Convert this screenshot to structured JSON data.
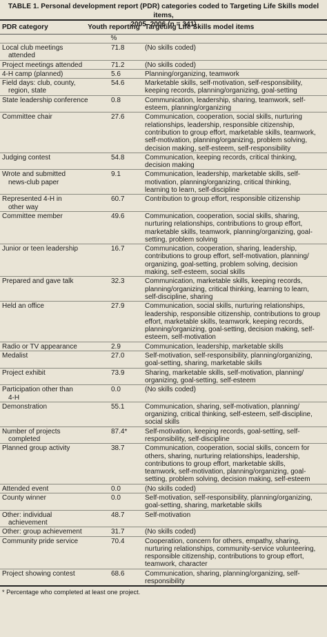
{
  "table": {
    "caption_line1": "TABLE 1. Personal development report (PDR) categories coded to Targeting Life Skills model items,",
    "caption_line2": "2005–2006 (n = 341)",
    "headers": [
      "PDR category",
      "Youth reporting",
      "Targeting Life Skills model items"
    ],
    "unit": "%",
    "rows": [
      {
        "cat": [
          "Local club meetings",
          "attended"
        ],
        "pct": "71.8",
        "items": [
          "(No skills coded)"
        ]
      },
      {
        "cat": [
          "Project meetings attended"
        ],
        "pct": "71.2",
        "items": [
          "(No skills coded)"
        ]
      },
      {
        "cat": [
          "4-H camp (planned)"
        ],
        "pct": "5.6",
        "items": [
          "Planning/organizing, teamwork"
        ]
      },
      {
        "cat": [
          "Field days: club, county,",
          "region, state"
        ],
        "pct": "54.6",
        "items": [
          "Marketable skills, self-motivation, self-responsibility,",
          "keeping records, planning/organizing, goal-setting"
        ]
      },
      {
        "cat": [
          "State leadership conference"
        ],
        "pct": "0.8",
        "items": [
          "Communication, leadership, sharing, teamwork, self-",
          "esteem, planning/organizing"
        ]
      },
      {
        "cat": [
          "Committee chair"
        ],
        "pct": "27.6",
        "items": [
          "Communication, cooperation, social skills, nurturing",
          "relationships, leadership, responsible citizenship,",
          "contribution to group effort, marketable skills, teamwork,",
          "self-motivation, planning/organizing, problem solving,",
          "decision making, self-esteem, self-responsibility"
        ]
      },
      {
        "cat": [
          "Judging contest"
        ],
        "pct": "54.8",
        "items": [
          "Communication, keeping records, critical thinking,",
          "decision making"
        ]
      },
      {
        "cat": [
          "Wrote and submitted",
          "news-club paper"
        ],
        "pct": "9.1",
        "items": [
          "Communication, leadership, marketable skills, self-",
          "motivation, planning/organizing, critical thinking,",
          "learning to learn, self-discipline"
        ]
      },
      {
        "cat": [
          "Represented 4-H in",
          "other way"
        ],
        "pct": "60.7",
        "items": [
          "Contribution to group effort, responsible citizenship"
        ]
      },
      {
        "cat": [
          "Committee member"
        ],
        "pct": "49.6",
        "items": [
          "Communication, cooperation, social skills, sharing,",
          "nurturing relationships, contributions to group effort,",
          "marketable skills, teamwork, planning/organizing, goal-",
          "setting, problem solving"
        ]
      },
      {
        "cat": [
          "Junior or teen leadership"
        ],
        "pct": "16.7",
        "items": [
          "Communication, cooperation, sharing, leadership,",
          "contributions to group effort, self-motivation, planning/",
          "organizing, goal-setting, problem solving, decision",
          "making, self-esteem, social skills"
        ]
      },
      {
        "cat": [
          "Prepared and gave talk"
        ],
        "pct": "32.3",
        "items": [
          "Communication, marketable skills, keeping records,",
          "planning/organizing, critical thinking, learning to learn,",
          "self-discipline, sharing"
        ]
      },
      {
        "cat": [
          "Held an office"
        ],
        "pct": "27.9",
        "items": [
          "Communication, social skills, nurturing relationships,",
          "leadership, responsible citizenship, contributions to group",
          "effort, marketable skills, teamwork, keeping records,",
          "planning/organizing, goal-setting, decision making, self-",
          "esteem, self-motivation"
        ]
      },
      {
        "cat": [
          "Radio or TV appearance"
        ],
        "pct": "2.9",
        "items": [
          "Communication, leadership, marketable skills"
        ]
      },
      {
        "cat": [
          "Medalist"
        ],
        "pct": "27.0",
        "items": [
          "Self-motivation, self-responsibility, planning/organizing,",
          "goal-setting, sharing, marketable skills"
        ]
      },
      {
        "cat": [
          "Project exhibit"
        ],
        "pct": "73.9",
        "items": [
          "Sharing, marketable skills, self-motivation, planning/",
          "organizing, goal-setting, self-esteem"
        ]
      },
      {
        "cat": [
          "Participation other than",
          "4-H"
        ],
        "pct": "0.0",
        "items": [
          "(No skills coded)"
        ]
      },
      {
        "cat": [
          "Demonstration"
        ],
        "pct": "55.1",
        "items": [
          "Communication, sharing, self-motivation, planning/",
          "organizing, critical thinking, self-esteem, self-discipline,",
          "social skills"
        ]
      },
      {
        "cat": [
          "Number of projects",
          "completed"
        ],
        "pct": "87.4*",
        "items": [
          "Self-motivation, keeping records, goal-setting, self-",
          "responsibility, self-discipline"
        ]
      },
      {
        "cat": [
          "Planned group activity"
        ],
        "pct": "38.7",
        "items": [
          "Communication, cooperation, social skills, concern for",
          "others, sharing, nurturing relationships, leadership,",
          "contributions to group effort, marketable skills,",
          "teamwork, self-motivation, planning/organizing, goal-",
          "setting, problem solving, decision making, self-esteem"
        ]
      },
      {
        "cat": [
          "Attended event"
        ],
        "pct": "0.0",
        "items": [
          "(No skills coded)"
        ]
      },
      {
        "cat": [
          "County winner"
        ],
        "pct": "0.0",
        "items": [
          "Self-motivation, self-responsibility, planning/organizing,",
          "goal-setting, sharing, marketable skills"
        ]
      },
      {
        "cat": [
          "Other: individual",
          "achievement"
        ],
        "pct": "48.7",
        "items": [
          "Self-motivation"
        ]
      },
      {
        "cat": [
          "Other: group achievement"
        ],
        "pct": "31.7",
        "items": [
          "(No skills coded)"
        ]
      },
      {
        "cat": [
          "Community pride service"
        ],
        "pct": "70.4",
        "items": [
          "Cooperation, concern for others, empathy, sharing,",
          "nurturing relationships, community-service volunteering,",
          "responsible citizenship, contributions to group effort,",
          "teamwork, character"
        ]
      },
      {
        "cat": [
          "Project showing contest"
        ],
        "pct": "68.6",
        "items": [
          "Communication, sharing, planning/organizing, self-",
          "responsibility"
        ]
      }
    ],
    "footnote": "* Percentage who completed at least one project."
  }
}
